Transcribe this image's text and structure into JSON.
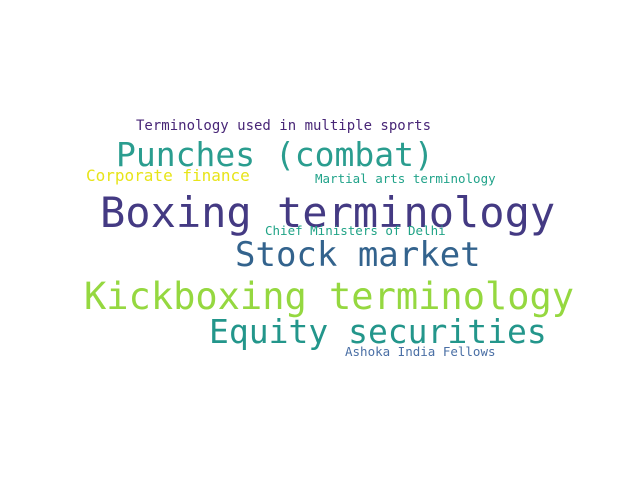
{
  "word_cloud": {
    "words": [
      {
        "text": "Terminology used in multiple sports",
        "color": "#482677"
      },
      {
        "text": "Punches (combat)",
        "color": "#2a9d8f"
      },
      {
        "text": "Corporate finance",
        "color": "#e7e419"
      },
      {
        "text": "Martial arts terminology",
        "color": "#21a38a"
      },
      {
        "text": "Boxing terminology",
        "color": "#443a83"
      },
      {
        "text": "Chief Ministers of Delhi",
        "color": "#20a386"
      },
      {
        "text": "Stock market",
        "color": "#33638d"
      },
      {
        "text": "Kickboxing terminology",
        "color": "#95d840"
      },
      {
        "text": "Equity securities",
        "color": "#23968b"
      },
      {
        "text": "Ashoka India Fellows",
        "color": "#4a6fa5"
      }
    ]
  }
}
